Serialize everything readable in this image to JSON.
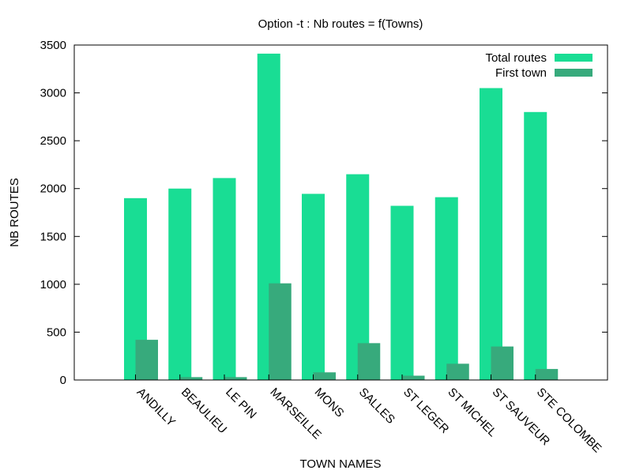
{
  "chart_data": {
    "type": "bar",
    "title": "Option -t : Nb routes = f(Towns)",
    "xlabel": "TOWN NAMES",
    "ylabel": "NB ROUTES",
    "ylim": [
      0,
      3500
    ],
    "yticks": [
      0,
      500,
      1000,
      1500,
      2000,
      2500,
      3000,
      3500
    ],
    "grid": false,
    "legend_position": "top-right",
    "categories": [
      "ANDILLY",
      "BEAULIEU",
      "LE PIN",
      "MARSEILLE",
      "MONS",
      "SALLES",
      "ST LEGER",
      "ST MICHEL",
      "ST SAUVEUR",
      "STE COLOMBE"
    ],
    "series": [
      {
        "name": "Total routes",
        "color": "#19dd94",
        "values": [
          1900,
          2000,
          2110,
          3410,
          1945,
          2150,
          1820,
          1910,
          3050,
          2800
        ]
      },
      {
        "name": "First town",
        "color": "#37aa7c",
        "values": [
          420,
          30,
          30,
          1010,
          80,
          385,
          45,
          170,
          350,
          115
        ]
      }
    ]
  }
}
